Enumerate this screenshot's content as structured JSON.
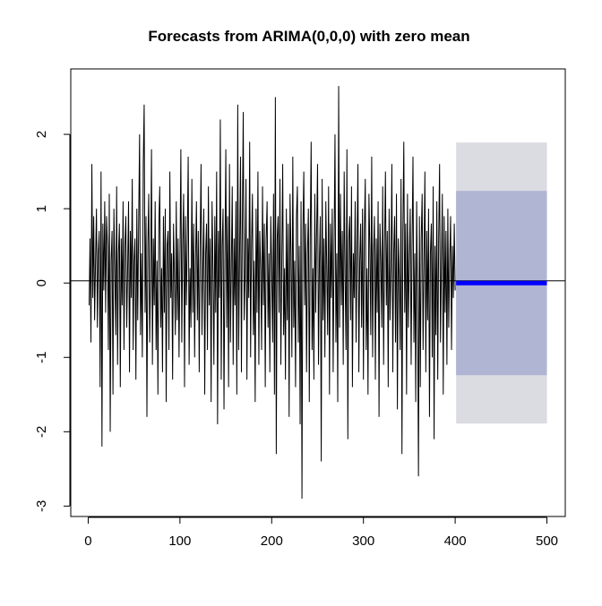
{
  "chart_data": {
    "type": "line",
    "title": "Forecasts from ARIMA(0,0,0) with zero mean",
    "xlim": [
      -19,
      520
    ],
    "ylim": [
      -3.14,
      2.88
    ],
    "xticks": [
      0,
      100,
      200,
      300,
      400,
      500
    ],
    "yticks": [
      -3,
      -2,
      -1,
      0,
      1,
      2
    ],
    "hline": 0.03,
    "hline_color": "#000000",
    "series": [
      {
        "color": "#000000",
        "x": [
          1,
          2,
          3,
          4,
          5,
          6,
          7,
          8,
          9,
          10,
          11,
          12,
          13,
          14,
          15,
          16,
          17,
          18,
          19,
          20,
          21,
          22,
          23,
          24,
          25,
          26,
          27,
          28,
          29,
          30,
          31,
          32,
          33,
          34,
          35,
          36,
          37,
          38,
          39,
          40,
          41,
          42,
          43,
          44,
          45,
          46,
          47,
          48,
          49,
          50,
          51,
          52,
          53,
          54,
          55,
          56,
          57,
          58,
          59,
          60,
          61,
          62,
          63,
          64,
          65,
          66,
          67,
          68,
          69,
          70,
          71,
          72,
          73,
          74,
          75,
          76,
          77,
          78,
          79,
          80,
          81,
          82,
          83,
          84,
          85,
          86,
          87,
          88,
          89,
          90,
          91,
          92,
          93,
          94,
          95,
          96,
          97,
          98,
          99,
          100,
          101,
          102,
          103,
          104,
          105,
          106,
          107,
          108,
          109,
          110,
          111,
          112,
          113,
          114,
          115,
          116,
          117,
          118,
          119,
          120,
          121,
          122,
          123,
          124,
          125,
          126,
          127,
          128,
          129,
          130,
          131,
          132,
          133,
          134,
          135,
          136,
          137,
          138,
          139,
          140,
          141,
          142,
          143,
          144,
          145,
          146,
          147,
          148,
          149,
          150,
          151,
          152,
          153,
          154,
          155,
          156,
          157,
          158,
          159,
          160,
          161,
          162,
          163,
          164,
          165,
          166,
          167,
          168,
          169,
          170,
          171,
          172,
          173,
          174,
          175,
          176,
          177,
          178,
          179,
          180,
          181,
          182,
          183,
          184,
          185,
          186,
          187,
          188,
          189,
          190,
          191,
          192,
          193,
          194,
          195,
          196,
          197,
          198,
          199,
          200,
          201,
          202,
          203,
          204,
          205,
          206,
          207,
          208,
          209,
          210,
          211,
          212,
          213,
          214,
          215,
          216,
          217,
          218,
          219,
          220,
          221,
          222,
          223,
          224,
          225,
          226,
          227,
          228,
          229,
          230,
          231,
          232,
          233,
          234,
          235,
          236,
          237,
          238,
          239,
          240,
          241,
          242,
          243,
          244,
          245,
          246,
          247,
          248,
          249,
          250,
          251,
          252,
          253,
          254,
          255,
          256,
          257,
          258,
          259,
          260,
          261,
          262,
          263,
          264,
          265,
          266,
          267,
          268,
          269,
          270,
          271,
          272,
          273,
          274,
          275,
          276,
          277,
          278,
          279,
          280,
          281,
          282,
          283,
          284,
          285,
          286,
          287,
          288,
          289,
          290,
          291,
          292,
          293,
          294,
          295,
          296,
          297,
          298,
          299,
          300,
          301,
          302,
          303,
          304,
          305,
          306,
          307,
          308,
          309,
          310,
          311,
          312,
          313,
          314,
          315,
          316,
          317,
          318,
          319,
          320,
          321,
          322,
          323,
          324,
          325,
          326,
          327,
          328,
          329,
          330,
          331,
          332,
          333,
          334,
          335,
          336,
          337,
          338,
          339,
          340,
          341,
          342,
          343,
          344,
          345,
          346,
          347,
          348,
          349,
          350,
          351,
          352,
          353,
          354,
          355,
          356,
          357,
          358,
          359,
          360,
          361,
          362,
          363,
          364,
          365,
          366,
          367,
          368,
          369,
          370,
          371,
          372,
          373,
          374,
          375,
          376,
          377,
          378,
          379,
          380,
          381,
          382,
          383,
          384,
          385,
          386,
          387,
          388,
          389,
          390,
          391,
          392,
          393,
          394,
          395,
          396,
          397,
          398,
          399,
          400
        ],
        "values": [
          -0.3,
          0.6,
          -0.8,
          1.6,
          -0.2,
          0.9,
          -0.5,
          0.3,
          1.0,
          -0.6,
          0.4,
          0.7,
          -1.4,
          1.5,
          -2.2,
          0.8,
          -0.1,
          1.1,
          -0.4,
          0.9,
          0.5,
          -0.9,
          1.2,
          -2.0,
          0.3,
          0.7,
          -1.5,
          1.0,
          0.2,
          -0.7,
          1.3,
          -1.1,
          0.4,
          0.8,
          -1.4,
          0.6,
          -0.3,
          1.1,
          -0.9,
          0.5,
          0.9,
          -0.6,
          0.2,
          1.1,
          -1.2,
          0.7,
          -0.2,
          1.4,
          -0.9,
          0.3,
          0.6,
          -1.3,
          1.0,
          -0.5,
          0.8,
          2.0,
          -0.7,
          0.4,
          -1.0,
          1.6,
          2.4,
          -0.4,
          0.9,
          -1.8,
          0.5,
          1.2,
          -0.8,
          0.1,
          1.8,
          -1.1,
          0.6,
          -0.3,
          1.1,
          -0.9,
          0.3,
          -1.5,
          0.8,
          1.3,
          -0.6,
          0.2,
          -1.2,
          0.9,
          -0.4,
          1.0,
          -1.6,
          0.5,
          0.7,
          -0.9,
          1.5,
          -0.2,
          0.4,
          -1.3,
          0.8,
          0.1,
          -0.7,
          1.1,
          -0.5,
          0.6,
          -1.0,
          0.3,
          1.8,
          -0.8,
          0.5,
          1.2,
          -1.4,
          0.9,
          -0.3,
          0.6,
          1.7,
          -1.1,
          0.2,
          -0.6,
          1.4,
          -0.4,
          0.8,
          -1.0,
          0.3,
          1.1,
          -0.5,
          0.7,
          -1.2,
          0.5,
          1.6,
          -0.7,
          0.2,
          1.0,
          -1.5,
          0.4,
          0.8,
          -0.9,
          1.3,
          -0.3,
          0.6,
          -1.6,
          1.1,
          0.2,
          -1.1,
          0.9,
          -0.4,
          1.5,
          -1.9,
          0.7,
          -0.2,
          2.2,
          -1.3,
          0.5,
          1.0,
          -1.7,
          0.3,
          1.8,
          -0.6,
          0.9,
          -1.4,
          1.6,
          -0.8,
          0.2,
          1.3,
          -1.1,
          0.6,
          -0.3,
          1.1,
          -1.5,
          2.4,
          -0.9,
          0.4,
          1.7,
          -1.2,
          0.8,
          2.3,
          -0.5,
          0.1,
          1.4,
          -1.3,
          0.6,
          -0.2,
          1.9,
          -1.0,
          0.5,
          1.2,
          -0.7,
          0.3,
          -1.6,
          1.0,
          -0.4,
          1.5,
          -1.1,
          0.7,
          0.2,
          -0.9,
          1.3,
          -0.3,
          0.8,
          -1.4,
          0.6,
          1.1,
          -0.6,
          0.4,
          -1.2,
          0.9,
          0.2,
          -0.8,
          1.2,
          -1.5,
          2.5,
          -2.3,
          0.6,
          0.9,
          -0.4,
          1.4,
          -1.1,
          0.3,
          1.6,
          -0.7,
          0.2,
          -1.3,
          1.0,
          -0.5,
          0.8,
          -1.8,
          1.2,
          0.4,
          -1.0,
          1.7,
          -0.6,
          0.3,
          -1.4,
          0.9,
          1.3,
          -0.8,
          0.5,
          -1.9,
          1.1,
          -2.9,
          0.7,
          1.5,
          -0.3,
          0.8,
          -1.2,
          0.4,
          1.0,
          -1.6,
          0.6,
          1.9,
          -0.9,
          0.2,
          -1.3,
          1.2,
          -0.4,
          0.7,
          1.6,
          -1.1,
          0.3,
          0.9,
          -2.4,
          1.4,
          -0.5,
          0.6,
          -1.0,
          1.1,
          0.2,
          -0.7,
          1.3,
          -1.5,
          0.8,
          -0.2,
          1.0,
          -1.2,
          0.5,
          2.0,
          -0.8,
          0.4,
          -1.6,
          2.65,
          -0.6,
          1.2,
          -0.3,
          0.7,
          -1.1,
          1.5,
          0.1,
          -0.9,
          1.8,
          -2.1,
          0.6,
          0.9,
          -0.5,
          1.3,
          -1.4,
          0.4,
          -0.2,
          1.1,
          -0.8,
          0.5,
          1.6,
          -1.2,
          0.3,
          0.8,
          -0.6,
          1.0,
          -1.3,
          0.7,
          1.4,
          -0.9,
          0.2,
          -1.5,
          1.2,
          0.5,
          -0.7,
          1.7,
          -1.0,
          0.4,
          0.9,
          -1.3,
          0.6,
          -0.4,
          1.1,
          -1.8,
          0.8,
          0.3,
          -0.6,
          1.3,
          -1.1,
          0.5,
          1.5,
          -0.3,
          0.7,
          -1.4,
          1.0,
          -0.5,
          0.2,
          1.6,
          -1.2,
          0.4,
          0.9,
          -0.8,
          1.2,
          -1.7,
          0.6,
          0.1,
          -0.9,
          1.4,
          -2.3,
          0.7,
          1.9,
          -0.4,
          0.8,
          -1.5,
          1.2,
          -0.6,
          0.3,
          1.0,
          -1.1,
          0.5,
          1.7,
          -0.8,
          0.4,
          -1.6,
          1.1,
          -0.3,
          -2.6,
          0.9,
          -1.4,
          0.6,
          1.2,
          -0.9,
          0.3,
          1.5,
          -1.2,
          0.7,
          -0.5,
          1.0,
          -1.8,
          0.4,
          0.8,
          -1.0,
          1.3,
          -2.1,
          0.5,
          -0.7,
          1.1,
          -1.3,
          0.6,
          1.6,
          -0.8,
          0.2,
          1.2,
          -1.5,
          0.9,
          -0.4,
          0.7,
          -1.1,
          1.0,
          -0.6,
          0.3,
          0.9,
          -0.9,
          0.5,
          -0.2,
          0.8,
          -0.1
        ]
      }
    ],
    "forecast": {
      "x": [
        401,
        500
      ],
      "mean": [
        0,
        0
      ],
      "lo80": [
        -1.24,
        -1.24
      ],
      "hi80": [
        1.24,
        1.24
      ],
      "lo95": [
        -1.89,
        -1.89
      ],
      "hi95": [
        1.89,
        1.89
      ],
      "color": "#0000ff",
      "band80_color": "#b0b5d3",
      "band95_color": "#dbdbe2"
    }
  }
}
